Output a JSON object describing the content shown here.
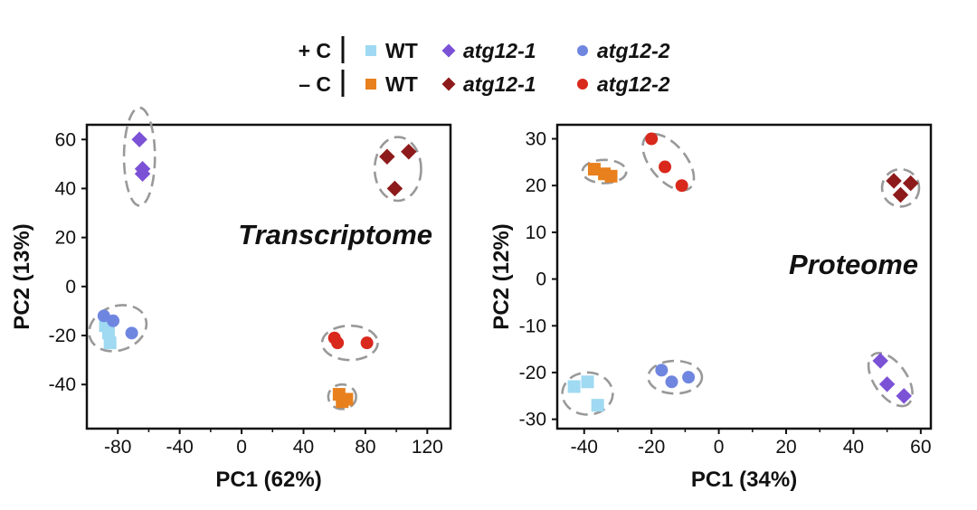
{
  "legend": {
    "rows": [
      {
        "label": "+ C",
        "entries": [
          {
            "text": "WT",
            "italic": false,
            "color": "#9fd9f2",
            "shape": "square"
          },
          {
            "text": "atg12-1",
            "italic": true,
            "color": "#7b52d6",
            "shape": "diamond"
          },
          {
            "text": "atg12-2",
            "italic": true,
            "color": "#6f86e0",
            "shape": "circle"
          }
        ]
      },
      {
        "label": "– C",
        "entries": [
          {
            "text": "WT",
            "italic": false,
            "color": "#e8801d",
            "shape": "square"
          },
          {
            "text": "atg12-1",
            "italic": true,
            "color": "#8e1b1b",
            "shape": "diamond"
          },
          {
            "text": "atg12-2",
            "italic": true,
            "color": "#d9281c",
            "shape": "circle"
          }
        ]
      }
    ]
  },
  "chart_data": [
    {
      "type": "scatter",
      "title": "Transcriptome",
      "xlabel": "PC1 (62%)",
      "ylabel": "PC2 (13%)",
      "xlim": [
        -100,
        135
      ],
      "ylim": [
        -58,
        66
      ],
      "xticks": [
        "-80",
        "-40",
        "0",
        "40",
        "80",
        "120"
      ],
      "yticks": [
        "60",
        "40",
        "20",
        "0",
        "-20",
        "-40"
      ],
      "grid": false,
      "series": [
        {
          "name": "+C WT",
          "color": "#9fd9f2",
          "shape": "square",
          "points": [
            [
              -88,
              -16
            ],
            [
              -86,
              -19
            ],
            [
              -85,
              -23
            ]
          ]
        },
        {
          "name": "+C atg12-1",
          "color": "#7b52d6",
          "shape": "diamond",
          "points": [
            [
              -66,
              60
            ],
            [
              -64,
              48
            ],
            [
              -64,
              46
            ]
          ]
        },
        {
          "name": "+C atg12-2",
          "color": "#6f86e0",
          "shape": "circle",
          "points": [
            [
              -89,
              -12
            ],
            [
              -83,
              -14
            ],
            [
              -71,
              -19
            ]
          ]
        },
        {
          "name": "-C WT",
          "color": "#e8801d",
          "shape": "square",
          "points": [
            [
              63,
              -44
            ],
            [
              65,
              -47
            ],
            [
              68,
              -46
            ]
          ]
        },
        {
          "name": "-C atg12-1",
          "color": "#8e1b1b",
          "shape": "diamond",
          "points": [
            [
              94,
              53
            ],
            [
              108,
              55
            ],
            [
              99,
              40
            ]
          ]
        },
        {
          "name": "-C atg12-2",
          "color": "#d9281c",
          "shape": "circle",
          "points": [
            [
              60,
              -21
            ],
            [
              62,
              -23
            ],
            [
              81,
              -23
            ]
          ]
        }
      ],
      "clusters": [
        {
          "center": [
            -66,
            53
          ],
          "rx": 10,
          "ry": 20
        },
        {
          "center": [
            -80,
            -17
          ],
          "rx": 19,
          "ry": 9,
          "angle": -20
        },
        {
          "center": [
            101,
            48
          ],
          "rx": 15,
          "ry": 13
        },
        {
          "center": [
            70,
            -23
          ],
          "rx": 18,
          "ry": 7
        },
        {
          "center": [
            65,
            -45
          ],
          "rx": 9,
          "ry": 5
        }
      ]
    },
    {
      "type": "scatter",
      "title": "Proteome",
      "xlabel": "PC1 (34%)",
      "ylabel": "PC2 (12%)",
      "xlim": [
        -48,
        63
      ],
      "ylim": [
        -32,
        33
      ],
      "xticks": [
        "-40",
        "-20",
        "0",
        "20",
        "40",
        "60"
      ],
      "yticks": [
        "30",
        "20",
        "10",
        "0",
        "-10",
        "-20",
        "-30"
      ],
      "grid": false,
      "series": [
        {
          "name": "+C WT",
          "color": "#9fd9f2",
          "shape": "square",
          "points": [
            [
              -43,
              -23
            ],
            [
              -39,
              -22
            ],
            [
              -36,
              -27
            ]
          ]
        },
        {
          "name": "+C atg12-1",
          "color": "#7b52d6",
          "shape": "diamond",
          "points": [
            [
              48,
              -17.5
            ],
            [
              50,
              -22.5
            ],
            [
              55,
              -25
            ]
          ]
        },
        {
          "name": "+C atg12-2",
          "color": "#6f86e0",
          "shape": "circle",
          "points": [
            [
              -17,
              -19.5
            ],
            [
              -14,
              -22
            ],
            [
              -9,
              -21
            ]
          ]
        },
        {
          "name": "-C WT",
          "color": "#e8801d",
          "shape": "square",
          "points": [
            [
              -37,
              23.5
            ],
            [
              -34,
              22.5
            ],
            [
              -32,
              22
            ]
          ]
        },
        {
          "name": "-C atg12-1",
          "color": "#8e1b1b",
          "shape": "diamond",
          "points": [
            [
              52,
              21
            ],
            [
              54,
              18
            ],
            [
              57,
              20.5
            ]
          ]
        },
        {
          "name": "-C atg12-2",
          "color": "#d9281c",
          "shape": "circle",
          "points": [
            [
              -20,
              30
            ],
            [
              -16,
              24
            ],
            [
              -11,
              20
            ]
          ]
        }
      ],
      "clusters": [
        {
          "center": [
            -34,
            23
          ],
          "rx": 6.5,
          "ry": 2.5
        },
        {
          "center": [
            -15,
            25
          ],
          "rx": 10,
          "ry": 3.8,
          "angle": 50
        },
        {
          "center": [
            54,
            19.5
          ],
          "rx": 5.5,
          "ry": 4
        },
        {
          "center": [
            -39,
            -24.5
          ],
          "rx": 7.5,
          "ry": 4.5
        },
        {
          "center": [
            -13,
            -21
          ],
          "rx": 8,
          "ry": 3.5
        },
        {
          "center": [
            51,
            -21.5
          ],
          "rx": 9,
          "ry": 3.5,
          "angle": 55
        }
      ]
    }
  ]
}
